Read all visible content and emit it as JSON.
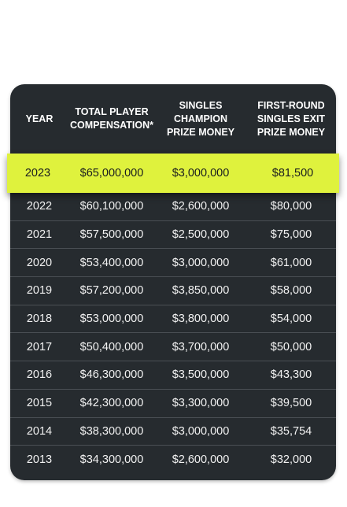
{
  "table": {
    "headers": [
      "YEAR",
      "TOTAL PLAYER\nCOMPENSATION*",
      "SINGLES\nCHAMPION\nPRIZE MONEY",
      "FIRST-ROUND\nSINGLES EXIT\nPRIZE MONEY"
    ],
    "highlight_row": [
      "2023",
      "$65,000,000",
      "$3,000,000",
      "$81,500"
    ],
    "rows": [
      [
        "2022",
        "$60,100,000",
        "$2,600,000",
        "$80,000"
      ],
      [
        "2021",
        "$57,500,000",
        "$2,500,000",
        "$75,000"
      ],
      [
        "2020",
        "$53,400,000",
        "$3,000,000",
        "$61,000"
      ],
      [
        "2019",
        "$57,200,000",
        "$3,850,000",
        "$58,000"
      ],
      [
        "2018",
        "$53,000,000",
        "$3,800,000",
        "$54,000"
      ],
      [
        "2017",
        "$50,400,000",
        "$3,700,000",
        "$50,000"
      ],
      [
        "2016",
        "$46,300,000",
        "$3,500,000",
        "$43,300"
      ],
      [
        "2015",
        "$42,300,000",
        "$3,300,000",
        "$39,500"
      ],
      [
        "2014",
        "$38,300,000",
        "$3,000,000",
        "$35,754"
      ],
      [
        "2013",
        "$34,300,000",
        "$2,600,000",
        "$32,000"
      ]
    ],
    "colors": {
      "card": "#262b2f",
      "highlight": "#dff23d"
    }
  }
}
